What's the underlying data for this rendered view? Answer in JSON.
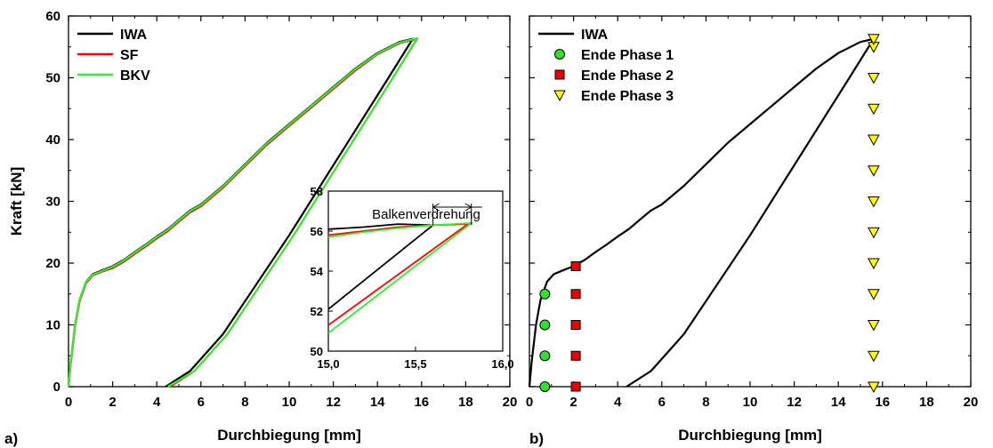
{
  "chart_data": [
    {
      "panel": "a)",
      "type": "line",
      "title": "",
      "xlabel": "Durchbiegung [mm]",
      "ylabel": "Kraft [kN]",
      "xlim": [
        0,
        20
      ],
      "ylim": [
        0,
        60
      ],
      "xticks": [
        "0",
        "2",
        "4",
        "6",
        "8",
        "10",
        "12",
        "14",
        "16",
        "18",
        "20"
      ],
      "yticks": [
        "0",
        "10",
        "20",
        "30",
        "40",
        "50",
        "60"
      ],
      "grid": false,
      "legend_position": "top-left",
      "series": [
        {
          "name": "IWA",
          "color": "#000000",
          "x": [
            0,
            0.1,
            0.3,
            0.5,
            0.8,
            1.1,
            1.5,
            2.0,
            2.5,
            3.0,
            3.5,
            4.0,
            4.5,
            5.0,
            5.5,
            6.0,
            7.0,
            8.0,
            9.0,
            10.0,
            11.0,
            12.0,
            13.0,
            14.0,
            15.0,
            15.6,
            14.5,
            13.0,
            11.5,
            10.0,
            8.5,
            7.0,
            5.5,
            4.4
          ],
          "y": [
            0,
            4,
            10,
            14,
            17,
            18.2,
            18.8,
            19.5,
            20.5,
            21.8,
            23.0,
            24.3,
            25.5,
            27.0,
            28.5,
            29.5,
            32.5,
            36.0,
            39.5,
            42.5,
            45.5,
            48.5,
            51.5,
            54.0,
            55.8,
            56.3,
            50.0,
            41.5,
            33.0,
            24.5,
            16.5,
            8.5,
            2.5,
            0
          ]
        },
        {
          "name": "SF",
          "color": "#ff0000",
          "x": [
            0,
            0.1,
            0.3,
            0.5,
            0.8,
            1.1,
            1.5,
            2.0,
            2.5,
            3.0,
            3.5,
            4.0,
            4.5,
            5.0,
            5.5,
            6.0,
            7.0,
            8.0,
            9.0,
            10.0,
            11.0,
            12.0,
            13.0,
            14.0,
            15.0,
            15.8,
            14.7,
            13.2,
            11.7,
            10.2,
            8.7,
            7.2,
            5.7,
            4.6
          ],
          "y": [
            0,
            3.8,
            9.8,
            13.8,
            16.8,
            18.0,
            18.6,
            19.2,
            20.2,
            21.5,
            22.7,
            24.0,
            25.2,
            26.7,
            28.2,
            29.2,
            32.2,
            35.7,
            39.2,
            42.2,
            45.2,
            48.2,
            51.2,
            53.8,
            55.6,
            56.3,
            50.0,
            41.5,
            33.0,
            24.5,
            16.5,
            8.5,
            2.5,
            0
          ]
        },
        {
          "name": "BKV",
          "color": "#33ee33",
          "x": [
            0,
            0.1,
            0.3,
            0.5,
            0.8,
            1.1,
            1.5,
            2.0,
            2.5,
            3.0,
            3.5,
            4.0,
            4.5,
            5.0,
            5.5,
            6.0,
            7.0,
            8.0,
            9.0,
            10.0,
            11.0,
            12.0,
            13.0,
            14.0,
            15.0,
            15.8,
            14.7,
            13.2,
            11.7,
            10.2,
            8.7,
            7.2,
            5.7,
            4.5
          ],
          "y": [
            0,
            4,
            10,
            14,
            17,
            18.1,
            18.7,
            19.4,
            20.4,
            21.7,
            22.9,
            24.2,
            25.4,
            26.9,
            28.4,
            29.4,
            32.4,
            35.9,
            39.4,
            42.4,
            45.4,
            48.4,
            51.4,
            53.9,
            55.7,
            56.4,
            50.0,
            41.5,
            33.0,
            24.5,
            16.5,
            8.5,
            2.5,
            0
          ]
        }
      ],
      "inset": {
        "xlim": [
          15.0,
          16.0
        ],
        "ylim": [
          50,
          58
        ],
        "xticks": [
          "15,0",
          "15,5",
          "16,0"
        ],
        "yticks": [
          "50",
          "52",
          "54",
          "56",
          "58"
        ],
        "annotation": "Balkenverdrehung",
        "annotation_span": [
          15.6,
          15.82
        ],
        "series": [
          {
            "name": "IWA",
            "color": "#000000",
            "x": [
              15.0,
              15.2,
              15.4,
              15.6,
              15.0
            ],
            "y": [
              56.1,
              56.2,
              56.35,
              56.3,
              52.1
            ]
          },
          {
            "name": "SF",
            "color": "#ff0000",
            "x": [
              15.0,
              15.2,
              15.4,
              15.6,
              15.8,
              15.0
            ],
            "y": [
              55.8,
              56.0,
              56.2,
              56.3,
              56.35,
              51.3
            ]
          },
          {
            "name": "BKV",
            "color": "#33ee33",
            "x": [
              15.0,
              15.2,
              15.4,
              15.6,
              15.82,
              15.0
            ],
            "y": [
              55.7,
              55.95,
              56.15,
              56.3,
              56.4,
              50.9
            ]
          }
        ]
      }
    },
    {
      "panel": "b)",
      "type": "line",
      "title": "",
      "xlabel": "Durchbiegung [mm]",
      "ylabel": "",
      "xlim": [
        0,
        20
      ],
      "ylim": [
        0,
        60
      ],
      "xticks": [
        "0",
        "2",
        "4",
        "6",
        "8",
        "10",
        "12",
        "14",
        "16",
        "18",
        "20"
      ],
      "yticks": [],
      "grid": false,
      "legend_position": "top-left",
      "series": [
        {
          "name": "IWA",
          "color": "#000000",
          "type": "line",
          "x": [
            0,
            0.1,
            0.3,
            0.5,
            0.8,
            1.1,
            1.5,
            2.0,
            2.5,
            3.0,
            3.5,
            4.0,
            4.5,
            5.0,
            5.5,
            6.0,
            7.0,
            8.0,
            9.0,
            10.0,
            11.0,
            12.0,
            13.0,
            14.0,
            15.0,
            15.6,
            14.5,
            13.0,
            11.5,
            10.0,
            8.5,
            7.0,
            5.5,
            4.4
          ],
          "y": [
            0,
            4,
            10,
            14,
            17,
            18.2,
            18.8,
            19.5,
            20.5,
            21.8,
            23.0,
            24.3,
            25.5,
            27.0,
            28.5,
            29.5,
            32.5,
            36.0,
            39.5,
            42.5,
            45.5,
            48.5,
            51.5,
            54.0,
            55.8,
            56.3,
            50.0,
            41.5,
            33.0,
            24.5,
            16.5,
            8.5,
            2.5,
            0
          ]
        },
        {
          "name": "Ende Phase 1",
          "color": "#33dd33",
          "type": "scatter",
          "marker": "circle",
          "x": [
            0.7,
            0.7,
            0.7,
            0.7
          ],
          "y": [
            0,
            5,
            10,
            15
          ]
        },
        {
          "name": "Ende Phase 2",
          "color": "#ee0000",
          "type": "scatter",
          "marker": "square",
          "x": [
            2.1,
            2.1,
            2.1,
            2.1,
            2.1
          ],
          "y": [
            0,
            5,
            10,
            15,
            19.5
          ]
        },
        {
          "name": "Ende Phase 3",
          "color": "#ffff00",
          "type": "scatter",
          "marker": "triangle-down",
          "x": [
            15.6,
            15.6,
            15.6,
            15.6,
            15.6,
            15.6,
            15.6,
            15.6,
            15.6,
            15.6,
            15.6,
            15.6,
            15.6
          ],
          "y": [
            0,
            5,
            10,
            15,
            20,
            25,
            30,
            35,
            40,
            45,
            50,
            55,
            56.3
          ]
        }
      ]
    }
  ]
}
